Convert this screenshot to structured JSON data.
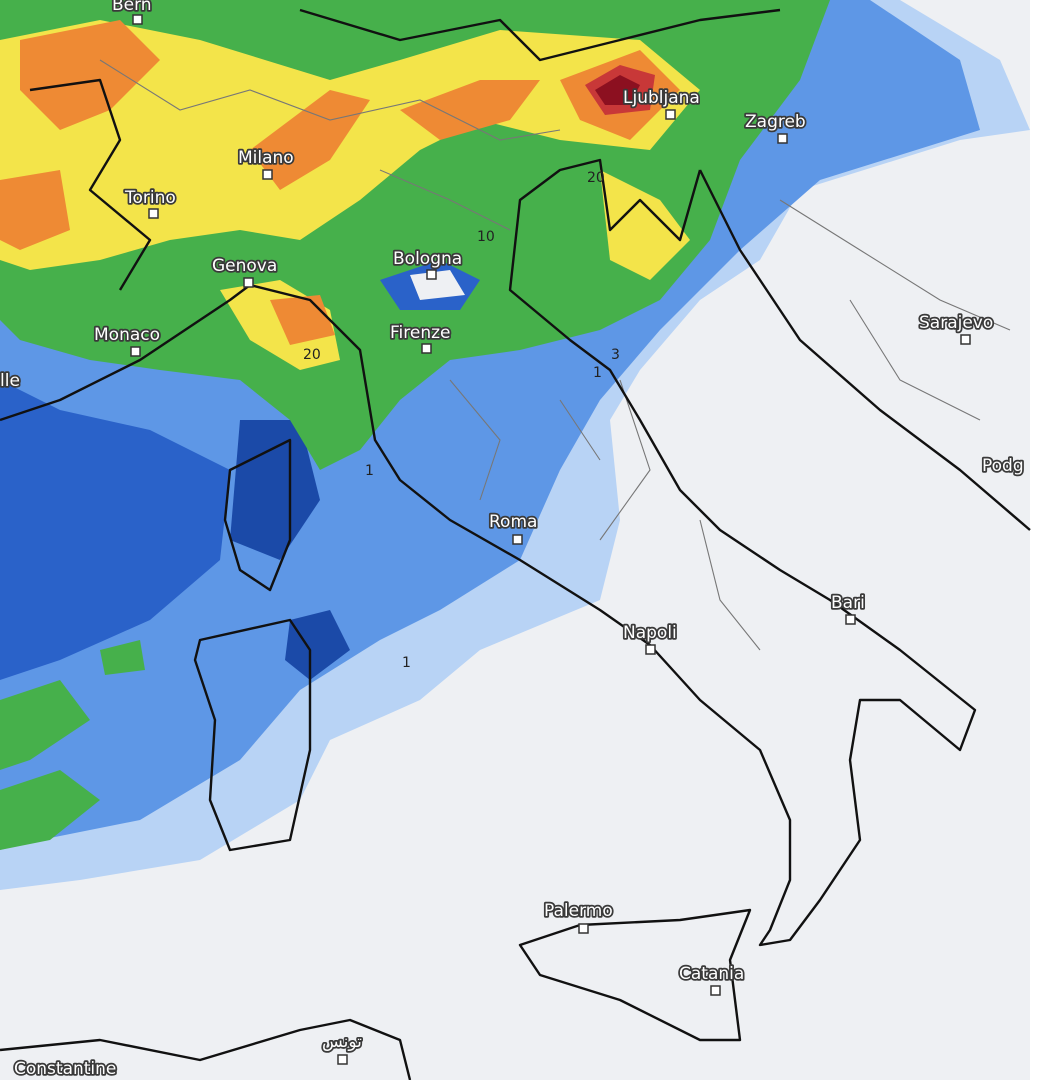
{
  "cities": [
    "Bern",
    "Ljubljana",
    "Zagreb",
    "Milano",
    "Torino",
    "Genova",
    "Bologna",
    "Monaco",
    "Firenze",
    "Sarajevo",
    "lle",
    "Podg",
    "Roma",
    "Bari",
    "Napoli",
    "Palermo",
    "Catania",
    "تونس",
    "Constantine"
  ],
  "contour_labels": [
    20,
    10,
    20,
    3,
    1,
    1,
    1
  ]
}
